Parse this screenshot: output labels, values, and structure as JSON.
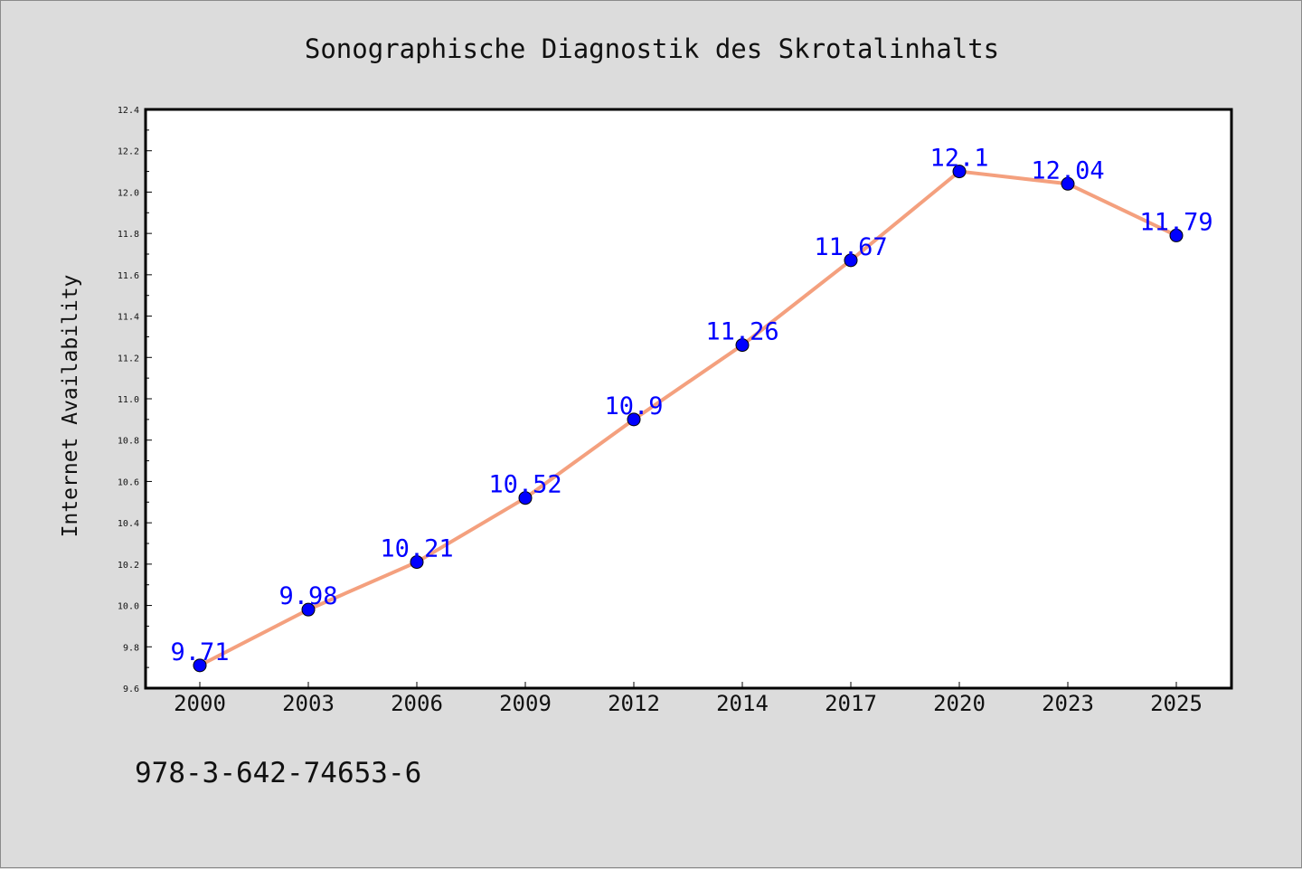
{
  "chart_data": {
    "type": "line",
    "title": "Sonographische Diagnostik des Skrotalinhalts",
    "xlabel": "",
    "ylabel": "Internet Availability",
    "categories": [
      "2000",
      "2003",
      "2006",
      "2009",
      "2012",
      "2014",
      "2017",
      "2020",
      "2023",
      "2025"
    ],
    "series": [
      {
        "values": [
          9.71,
          9.98,
          10.21,
          10.52,
          10.9,
          11.26,
          11.67,
          12.1,
          12.04,
          11.79
        ],
        "line_color": "#f4a07e",
        "marker_color": "#0000ff"
      }
    ],
    "data_labels": [
      "9.71",
      "9.98",
      "10.21",
      "10.52",
      "10.9",
      "11.26",
      "11.67",
      "12.1",
      "12.04",
      "11.79"
    ],
    "ylim": [
      9.6,
      12.4
    ],
    "y_ticks": [
      "9.6",
      "9.8",
      "10.0",
      "10.2",
      "10.4",
      "10.6",
      "10.8",
      "11.0",
      "11.2",
      "11.4",
      "11.6",
      "11.8",
      "12.0",
      "12.2",
      "12.4"
    ],
    "grid": false,
    "legend": "none"
  },
  "footer": {
    "isbn": "978-3-642-74653-6"
  }
}
